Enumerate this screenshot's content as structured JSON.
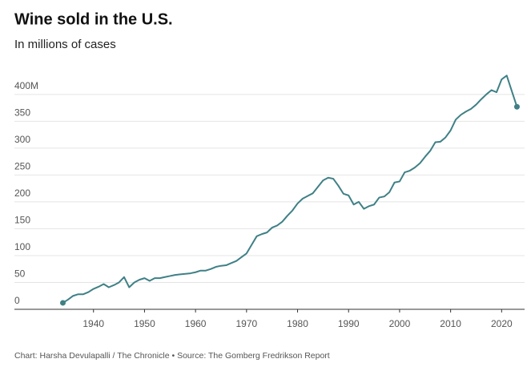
{
  "chart_data": {
    "type": "line",
    "title": "Wine sold in the U.S.",
    "subtitle": "In millions of cases",
    "source": "Chart: Harsha Devulapalli / The Chronicle • Source: The Gomberg Fredrikson Report",
    "x": [
      1934,
      1935,
      1936,
      1937,
      1938,
      1939,
      1940,
      1941,
      1942,
      1943,
      1944,
      1945,
      1946,
      1947,
      1948,
      1949,
      1950,
      1951,
      1952,
      1953,
      1954,
      1955,
      1956,
      1957,
      1958,
      1959,
      1960,
      1961,
      1962,
      1963,
      1964,
      1965,
      1966,
      1967,
      1968,
      1969,
      1970,
      1971,
      1972,
      1973,
      1974,
      1975,
      1976,
      1977,
      1978,
      1979,
      1980,
      1981,
      1982,
      1983,
      1984,
      1985,
      1986,
      1987,
      1988,
      1989,
      1990,
      1991,
      1992,
      1993,
      1994,
      1995,
      1996,
      1997,
      1998,
      1999,
      2000,
      2001,
      2002,
      2003,
      2004,
      2005,
      2006,
      2007,
      2008,
      2009,
      2010,
      2011,
      2012,
      2013,
      2014,
      2015,
      2016,
      2017,
      2018,
      2019,
      2020,
      2021,
      2022,
      2023
    ],
    "values": [
      12,
      18,
      25,
      28,
      28,
      32,
      38,
      42,
      47,
      41,
      45,
      50,
      60,
      41,
      50,
      55,
      58,
      53,
      58,
      58,
      60,
      62,
      64,
      65,
      66,
      67,
      69,
      72,
      72,
      75,
      79,
      81,
      82,
      86,
      90,
      97,
      104,
      120,
      136,
      140,
      143,
      152,
      156,
      163,
      174,
      184,
      197,
      206,
      211,
      216,
      228,
      240,
      245,
      243,
      230,
      215,
      212,
      195,
      200,
      187,
      192,
      195,
      208,
      210,
      218,
      236,
      238,
      255,
      258,
      264,
      272,
      284,
      295,
      311,
      312,
      320,
      333,
      353,
      362,
      368,
      373,
      381,
      391,
      400,
      408,
      404,
      428,
      435,
      406,
      377
    ],
    "color": "#3f8086",
    "xlim": [
      1924.5,
      2024.5
    ],
    "xticks": [
      1940,
      1950,
      1960,
      1970,
      1980,
      1990,
      2000,
      2010,
      2020
    ],
    "ylim": [
      0,
      440
    ],
    "yticks": [
      0,
      50,
      100,
      150,
      200,
      250,
      300,
      350,
      {
        "value": 400,
        "label": "400M"
      }
    ],
    "grid": true
  }
}
